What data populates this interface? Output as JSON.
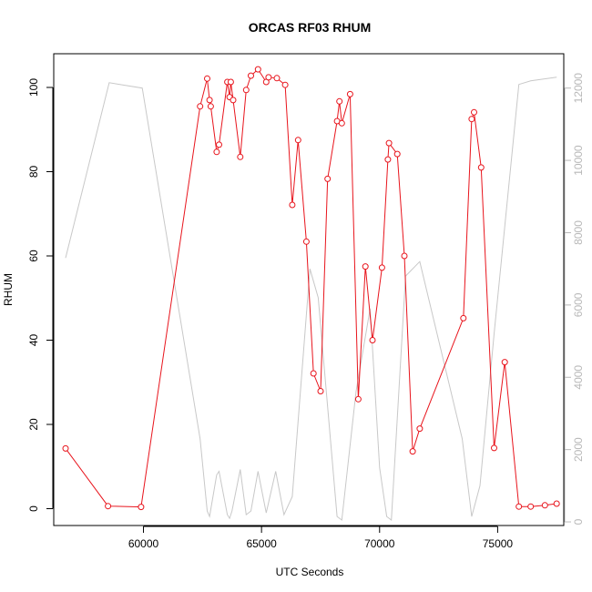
{
  "chart_data": {
    "type": "line",
    "title": "ORCAS RF03 RHUM",
    "xlabel": "UTC Seconds",
    "ylabel": "RHUM",
    "xlim": [
      56200,
      77800
    ],
    "ylim": [
      -4,
      108
    ],
    "y2lim": [
      -100,
      12950
    ],
    "x_ticks": [
      60000,
      65000,
      70000,
      75000
    ],
    "y_ticks": [
      0,
      20,
      40,
      60,
      80,
      100
    ],
    "y2_ticks": [
      0,
      2000,
      4000,
      6000,
      8000,
      10000,
      12000
    ],
    "grid": false,
    "colors": {
      "primary": "#e8141c",
      "secondary": "#c8c8c8"
    },
    "series": [
      {
        "axis": "left",
        "style": "line-with-circles",
        "x": [
          56700,
          58500,
          59900,
          62400,
          62700,
          62800,
          62850,
          63100,
          63200,
          63550,
          63650,
          63700,
          63800,
          64100,
          64350,
          64550,
          64850,
          65200,
          65300,
          65650,
          66000,
          66300,
          66550,
          66900,
          67200,
          67500,
          67800,
          68200,
          68300,
          68400,
          68750,
          69100,
          69400,
          69700,
          70100,
          70350,
          70400,
          70750,
          71050,
          71400,
          71700,
          73550,
          73900,
          74000,
          74300,
          74850,
          75300,
          75900,
          76400,
          77000,
          77500
        ],
        "y": [
          14.3,
          0.6,
          0.4,
          95.5,
          102.1,
          97.0,
          95.5,
          84.7,
          86.4,
          101.3,
          97.7,
          101.3,
          97.0,
          83.5,
          99.4,
          102.8,
          104.3,
          101.3,
          102.4,
          102.2,
          100.6,
          72.1,
          87.5,
          63.4,
          32.1,
          27.9,
          78.3,
          92.0,
          96.7,
          91.5,
          98.4,
          26.0,
          57.5,
          40.0,
          57.2,
          82.9,
          86.8,
          84.2,
          60.0,
          13.6,
          19.0,
          45.2,
          92.5,
          94.1,
          81.0,
          14.4,
          34.8,
          0.5,
          0.5,
          0.8,
          1.2
        ]
      },
      {
        "axis": "right",
        "style": "line",
        "x": [
          56700,
          58550,
          59950,
          62400,
          62700,
          62800,
          63100,
          63200,
          63550,
          63650,
          63750,
          64100,
          64350,
          64550,
          64850,
          65200,
          65600,
          65950,
          66300,
          67050,
          67400,
          68200,
          68400,
          69000,
          69600,
          70000,
          70300,
          70500,
          71100,
          71700,
          73500,
          73900,
          74250,
          74850,
          75900,
          76400,
          77500
        ],
        "y": [
          7300,
          12150,
          12000,
          2300,
          300,
          150,
          1300,
          1400,
          200,
          100,
          300,
          1450,
          200,
          300,
          1400,
          250,
          1400,
          200,
          700,
          7000,
          6200,
          150,
          50,
          3600,
          5900,
          1500,
          150,
          50,
          6800,
          7200,
          2300,
          150,
          1000,
          5200,
          12100,
          12200,
          12300
        ]
      }
    ]
  }
}
